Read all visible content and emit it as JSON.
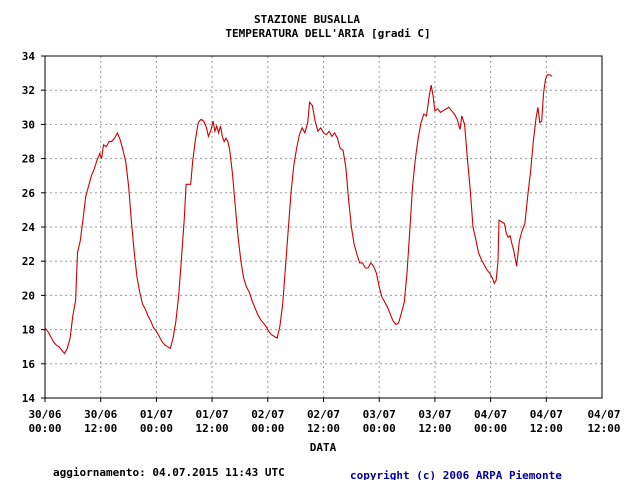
{
  "chart_data": {
    "type": "line",
    "title": "STAZIONE BUSALLA",
    "subtitle": "TEMPERATURA DELL'ARIA [gradi C]",
    "xlabel": "DATA",
    "ylabel": "",
    "ylim": [
      14,
      34
    ],
    "xlim": [
      0,
      120
    ],
    "grid": true,
    "y_ticks": [
      14,
      16,
      18,
      20,
      22,
      24,
      26,
      28,
      30,
      32,
      34
    ],
    "x_ticks": [
      {
        "x": 0,
        "line1": "30/06",
        "line2": "00:00"
      },
      {
        "x": 12,
        "line1": "30/06",
        "line2": "12:00"
      },
      {
        "x": 24,
        "line1": "01/07",
        "line2": "00:00"
      },
      {
        "x": 36,
        "line1": "01/07",
        "line2": "12:00"
      },
      {
        "x": 48,
        "line1": "02/07",
        "line2": "00:00"
      },
      {
        "x": 60,
        "line1": "02/07",
        "line2": "12:00"
      },
      {
        "x": 72,
        "line1": "03/07",
        "line2": "00:00"
      },
      {
        "x": 84,
        "line1": "03/07",
        "line2": "12:00"
      },
      {
        "x": 96,
        "line1": "04/07",
        "line2": "00:00"
      },
      {
        "x": 108,
        "line1": "04/07",
        "line2": "12:00"
      }
    ],
    "series": [
      {
        "color": "#cc0000",
        "points": [
          [
            0,
            18.1
          ],
          [
            0.6,
            17.9
          ],
          [
            1.2,
            17.6
          ],
          [
            1.8,
            17.3
          ],
          [
            2.4,
            17.1
          ],
          [
            3,
            17.0
          ],
          [
            3.6,
            16.8
          ],
          [
            4.2,
            16.6
          ],
          [
            4.8,
            16.9
          ],
          [
            5.4,
            17.5
          ],
          [
            6,
            18.8
          ],
          [
            6.6,
            19.7
          ],
          [
            7,
            22.5
          ],
          [
            7.6,
            23.2
          ],
          [
            8.2,
            24.5
          ],
          [
            8.8,
            25.8
          ],
          [
            9.4,
            26.4
          ],
          [
            10,
            27.0
          ],
          [
            10.6,
            27.4
          ],
          [
            11.2,
            27.9
          ],
          [
            11.8,
            28.3
          ],
          [
            12.2,
            28.0
          ],
          [
            12.6,
            28.8
          ],
          [
            13.2,
            28.7
          ],
          [
            13.8,
            29.0
          ],
          [
            14.4,
            29.0
          ],
          [
            15,
            29.2
          ],
          [
            15.6,
            29.5
          ],
          [
            16.2,
            29.1
          ],
          [
            16.8,
            28.5
          ],
          [
            17.4,
            27.8
          ],
          [
            18,
            26.4
          ],
          [
            18.6,
            24.4
          ],
          [
            19.2,
            22.6
          ],
          [
            19.8,
            21.1
          ],
          [
            20.4,
            20.2
          ],
          [
            21,
            19.5
          ],
          [
            21.6,
            19.2
          ],
          [
            22.2,
            18.8
          ],
          [
            22.8,
            18.5
          ],
          [
            23.4,
            18.1
          ],
          [
            24,
            17.9
          ],
          [
            24.6,
            17.6
          ],
          [
            25.2,
            17.3
          ],
          [
            25.8,
            17.1
          ],
          [
            26.4,
            17.0
          ],
          [
            27,
            16.9
          ],
          [
            27.6,
            17.5
          ],
          [
            28.2,
            18.5
          ],
          [
            28.8,
            20.0
          ],
          [
            29.4,
            22.2
          ],
          [
            30,
            24.5
          ],
          [
            30.4,
            26.5
          ],
          [
            31,
            26.5
          ],
          [
            31.4,
            26.5
          ],
          [
            31.8,
            27.8
          ],
          [
            32.4,
            29.1
          ],
          [
            33,
            30.1
          ],
          [
            33.6,
            30.3
          ],
          [
            34.2,
            30.2
          ],
          [
            34.8,
            29.8
          ],
          [
            35.2,
            29.3
          ],
          [
            35.8,
            29.7
          ],
          [
            36.2,
            30.2
          ],
          [
            36.6,
            29.6
          ],
          [
            37,
            29.9
          ],
          [
            37.4,
            29.5
          ],
          [
            37.8,
            29.9
          ],
          [
            38.2,
            29.3
          ],
          [
            38.6,
            29.0
          ],
          [
            39,
            29.2
          ],
          [
            39.4,
            29.0
          ],
          [
            39.8,
            28.5
          ],
          [
            40.4,
            27.1
          ],
          [
            41,
            25.2
          ],
          [
            41.6,
            23.4
          ],
          [
            42.2,
            22.0
          ],
          [
            42.8,
            21.0
          ],
          [
            43.4,
            20.5
          ],
          [
            44,
            20.2
          ],
          [
            44.6,
            19.7
          ],
          [
            45.2,
            19.3
          ],
          [
            45.8,
            18.9
          ],
          [
            46.4,
            18.6
          ],
          [
            47,
            18.4
          ],
          [
            47.6,
            18.2
          ],
          [
            48.2,
            17.9
          ],
          [
            48.8,
            17.7
          ],
          [
            49.4,
            17.6
          ],
          [
            50,
            17.5
          ],
          [
            50.6,
            18.2
          ],
          [
            51.2,
            19.5
          ],
          [
            51.8,
            21.6
          ],
          [
            52.4,
            23.8
          ],
          [
            53,
            26.0
          ],
          [
            53.6,
            27.6
          ],
          [
            54.2,
            28.6
          ],
          [
            54.8,
            29.4
          ],
          [
            55.4,
            29.8
          ],
          [
            56,
            29.5
          ],
          [
            56.6,
            30.1
          ],
          [
            57,
            31.3
          ],
          [
            57.6,
            31.1
          ],
          [
            58.2,
            30.2
          ],
          [
            58.8,
            29.6
          ],
          [
            59.4,
            29.8
          ],
          [
            60,
            29.5
          ],
          [
            60.6,
            29.4
          ],
          [
            61.2,
            29.6
          ],
          [
            61.8,
            29.3
          ],
          [
            62.4,
            29.5
          ],
          [
            63,
            29.2
          ],
          [
            63.6,
            28.6
          ],
          [
            64.2,
            28.5
          ],
          [
            64.8,
            27.5
          ],
          [
            65.4,
            25.6
          ],
          [
            66,
            24.0
          ],
          [
            66.6,
            23.0
          ],
          [
            67.2,
            22.4
          ],
          [
            67.8,
            21.9
          ],
          [
            68.4,
            21.9
          ],
          [
            69,
            21.6
          ],
          [
            69.6,
            21.6
          ],
          [
            70.2,
            21.9
          ],
          [
            70.8,
            21.7
          ],
          [
            71.4,
            21.3
          ],
          [
            72,
            20.5
          ],
          [
            72.6,
            19.9
          ],
          [
            73.2,
            19.6
          ],
          [
            73.8,
            19.3
          ],
          [
            74.4,
            18.9
          ],
          [
            75,
            18.5
          ],
          [
            75.6,
            18.3
          ],
          [
            76.2,
            18.4
          ],
          [
            76.8,
            19.0
          ],
          [
            77.4,
            19.6
          ],
          [
            78,
            21.4
          ],
          [
            78.6,
            23.8
          ],
          [
            79.2,
            26.4
          ],
          [
            79.8,
            28.0
          ],
          [
            80.4,
            29.2
          ],
          [
            81,
            30.1
          ],
          [
            81.6,
            30.6
          ],
          [
            82.2,
            30.5
          ],
          [
            82.8,
            31.7
          ],
          [
            83.2,
            32.3
          ],
          [
            83.6,
            31.7
          ],
          [
            84,
            30.8
          ],
          [
            84.6,
            30.9
          ],
          [
            85.2,
            30.7
          ],
          [
            85.8,
            30.8
          ],
          [
            86.4,
            30.9
          ],
          [
            87,
            31.0
          ],
          [
            87.6,
            30.8
          ],
          [
            88.2,
            30.6
          ],
          [
            88.8,
            30.3
          ],
          [
            89.4,
            29.7
          ],
          [
            89.8,
            30.5
          ],
          [
            90.4,
            30.0
          ],
          [
            91,
            28.0
          ],
          [
            91.6,
            26.2
          ],
          [
            92.2,
            24.0
          ],
          [
            92.8,
            23.3
          ],
          [
            93.4,
            22.5
          ],
          [
            94,
            22.1
          ],
          [
            94.6,
            21.8
          ],
          [
            95.2,
            21.5
          ],
          [
            95.8,
            21.3
          ],
          [
            96.4,
            21.0
          ],
          [
            96.8,
            20.7
          ],
          [
            97.2,
            20.9
          ],
          [
            97.6,
            22.0
          ],
          [
            97.8,
            24.4
          ],
          [
            98.4,
            24.3
          ],
          [
            99,
            24.2
          ],
          [
            99.4,
            23.6
          ],
          [
            99.8,
            23.4
          ],
          [
            100.2,
            23.5
          ],
          [
            100.6,
            23.0
          ],
          [
            101,
            22.6
          ],
          [
            101.6,
            21.7
          ],
          [
            102.2,
            23.2
          ],
          [
            102.8,
            23.8
          ],
          [
            103.4,
            24.2
          ],
          [
            104,
            25.8
          ],
          [
            104.6,
            27.2
          ],
          [
            105.2,
            29.0
          ],
          [
            105.8,
            30.4
          ],
          [
            106.2,
            31.0
          ],
          [
            106.6,
            30.1
          ],
          [
            107,
            30.2
          ],
          [
            107.4,
            31.8
          ],
          [
            107.8,
            32.6
          ],
          [
            108.2,
            32.9
          ],
          [
            108.8,
            32.9
          ],
          [
            109.2,
            32.8
          ]
        ]
      }
    ]
  },
  "footer": {
    "updated": "aggiornamento: 04.07.2015 11:43 UTC",
    "copyright": "copyright (c) 2006 ARPA Piemonte",
    "copyright_color": "#000099"
  }
}
